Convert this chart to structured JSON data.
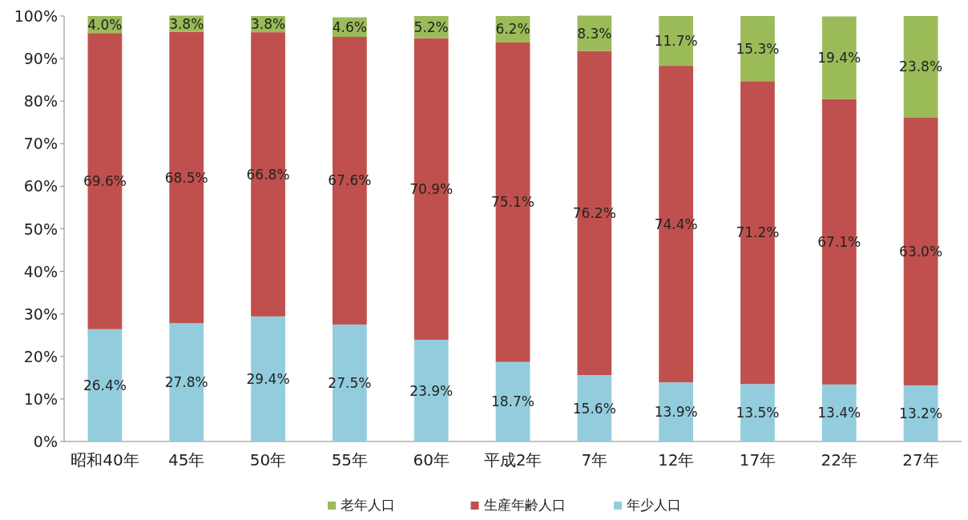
{
  "chart_data": {
    "type": "bar",
    "stacked": true,
    "legend": "bottom",
    "categories": [
      "昭和40年",
      "45年",
      "50年",
      "55年",
      "60年",
      "平成2年",
      "7年",
      "12年",
      "17年",
      "22年",
      "27年"
    ],
    "ylim": [
      0,
      100
    ],
    "yticks": [
      {
        "value": 0,
        "label": "0%"
      },
      {
        "value": 10,
        "label": "10%"
      },
      {
        "value": 20,
        "label": "20%"
      },
      {
        "value": 30,
        "label": "30%"
      },
      {
        "value": 40,
        "label": "40%"
      },
      {
        "value": 50,
        "label": "50%"
      },
      {
        "value": 60,
        "label": "60%"
      },
      {
        "value": 70,
        "label": "70%"
      },
      {
        "value": 80,
        "label": "80%"
      },
      {
        "value": 90,
        "label": "90%"
      },
      {
        "value": 100,
        "label": "100%"
      }
    ],
    "series": [
      {
        "name": "年少人口",
        "color": "#93cddd",
        "values": [
          26.4,
          27.8,
          29.4,
          27.5,
          23.9,
          18.7,
          15.6,
          13.9,
          13.5,
          13.4,
          13.2
        ],
        "value_labels": [
          "26.4%",
          "27.8%",
          "29.4%",
          "27.5%",
          "23.9%",
          "18.7%",
          "15.6%",
          "13.9%",
          "13.5%",
          "13.4%",
          "13.2%"
        ]
      },
      {
        "name": "生産年齢人口",
        "color": "#c0504d",
        "values": [
          69.6,
          68.5,
          66.8,
          67.6,
          70.9,
          75.1,
          76.2,
          74.4,
          71.2,
          67.1,
          63.0
        ],
        "value_labels": [
          "69.6%",
          "68.5%",
          "66.8%",
          "67.6%",
          "70.9%",
          "75.1%",
          "76.2%",
          "74.4%",
          "71.2%",
          "67.1%",
          "63.0%"
        ]
      },
      {
        "name": "老年人口",
        "color": "#9bbb59",
        "values": [
          4.0,
          3.8,
          3.8,
          4.6,
          5.2,
          6.2,
          8.3,
          11.7,
          15.3,
          19.4,
          23.8
        ],
        "value_labels": [
          "4.0%",
          "3.8%",
          "3.8%",
          "4.6%",
          "5.2%",
          "6.2%",
          "8.3%",
          "11.7%",
          "15.3%",
          "19.4%",
          "23.8%"
        ]
      }
    ]
  }
}
